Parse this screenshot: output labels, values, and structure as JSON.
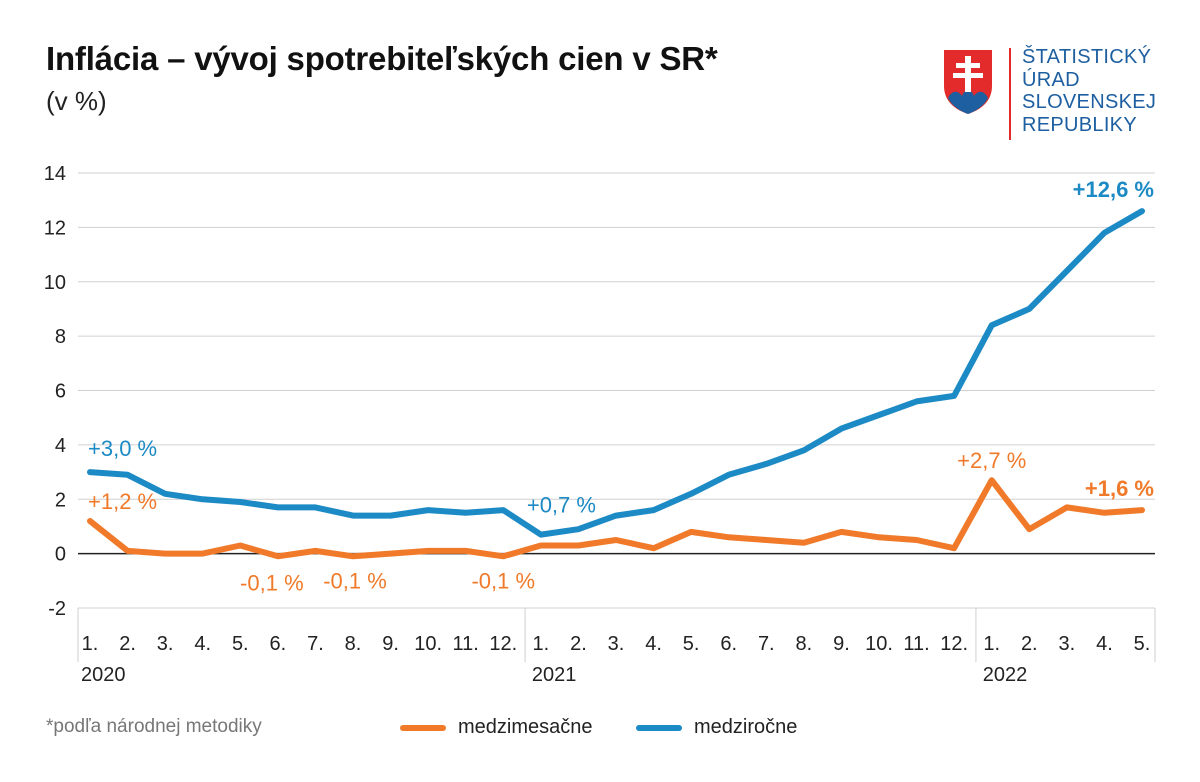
{
  "header": {
    "title": "Inflácia – vývoj spotrebiteľských cien v SR*",
    "subtitle": "(v %)"
  },
  "logo": {
    "icon": "slovak-coat-of-arms-icon",
    "lines": [
      "ŠTATISTICKÝ",
      "ÚRAD",
      "SLOVENSKEJ",
      "REPUBLIKY"
    ],
    "color": "#1d5fa0"
  },
  "footnote": "*podľa národnej metodiky",
  "chart_data": {
    "type": "line",
    "title": "Inflácia – vývoj spotrebiteľských cien v SR*",
    "ylabel": "(v %)",
    "ylim": [
      -2,
      14
    ],
    "yticks": [
      -2,
      0,
      2,
      4,
      6,
      8,
      10,
      12,
      14
    ],
    "grid": true,
    "legend_position": "bottom",
    "x": [
      "1.",
      "2.",
      "3.",
      "4.",
      "5.",
      "6.",
      "7.",
      "8.",
      "9.",
      "10.",
      "11.",
      "12.",
      "1.",
      "2.",
      "3.",
      "4.",
      "5.",
      "6.",
      "7.",
      "8.",
      "9.",
      "10.",
      "11.",
      "12.",
      "1.",
      "2.",
      "3.",
      "4.",
      "5."
    ],
    "years": [
      {
        "label": "2020",
        "start_index": 0
      },
      {
        "label": "2021",
        "start_index": 12
      },
      {
        "label": "2022",
        "start_index": 24
      }
    ],
    "series": [
      {
        "name": "medzimesačne",
        "color": "#f07a2a",
        "values": [
          1.2,
          0.1,
          0.0,
          0.0,
          0.3,
          -0.1,
          0.1,
          -0.1,
          0.0,
          0.1,
          0.1,
          -0.1,
          0.3,
          0.3,
          0.5,
          0.2,
          0.8,
          0.6,
          0.5,
          0.4,
          0.8,
          0.6,
          0.5,
          0.2,
          2.7,
          0.9,
          1.7,
          1.5,
          1.6
        ]
      },
      {
        "name": "medziročne",
        "color": "#1c8ac4",
        "values": [
          3.0,
          2.9,
          2.2,
          2.0,
          1.9,
          1.7,
          1.7,
          1.4,
          1.4,
          1.6,
          1.5,
          1.6,
          0.7,
          0.9,
          1.4,
          1.6,
          2.2,
          2.9,
          3.3,
          3.8,
          4.6,
          5.1,
          5.6,
          5.8,
          8.4,
          9.0,
          10.4,
          11.8,
          12.6
        ]
      }
    ],
    "annotations": [
      {
        "series": "medziročne",
        "index": 0,
        "text": "+3,0 %",
        "color": "#1c8ac4",
        "bold": false
      },
      {
        "series": "medziročne",
        "index": 12,
        "text": "+0,7 %",
        "color": "#1c8ac4",
        "bold": false
      },
      {
        "series": "medziročne",
        "index": 28,
        "text": "+12,6 %",
        "color": "#1c8ac4",
        "bold": true
      },
      {
        "series": "medzimesačne",
        "index": 0,
        "text": "+1,2 %",
        "color": "#f07a2a",
        "bold": false
      },
      {
        "series": "medzimesačne",
        "index": 5,
        "text": "-0,1 %",
        "color": "#f07a2a",
        "bold": false
      },
      {
        "series": "medzimesačne",
        "index": 7,
        "text": "-0,1 %",
        "color": "#f07a2a",
        "bold": false
      },
      {
        "series": "medzimesačne",
        "index": 11,
        "text": "-0,1 %",
        "color": "#f07a2a",
        "bold": false
      },
      {
        "series": "medzimesačne",
        "index": 24,
        "text": "+2,7 %",
        "color": "#f07a2a",
        "bold": false
      },
      {
        "series": "medzimesačne",
        "index": 28,
        "text": "+1,6 %",
        "color": "#f07a2a",
        "bold": true
      }
    ]
  }
}
